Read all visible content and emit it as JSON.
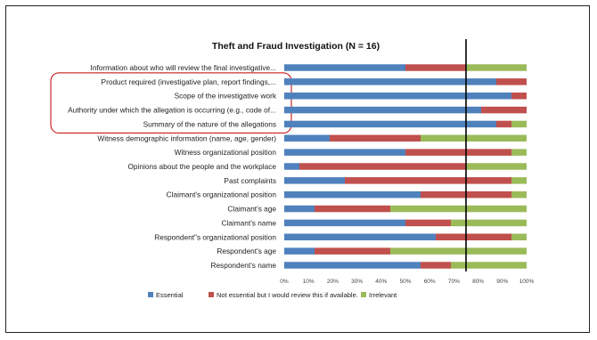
{
  "chart_data": {
    "type": "bar",
    "stacked": "percent",
    "orientation": "horizontal",
    "title": "Theft and Fraud Investigation (N = 16)",
    "categories": [
      "Information about who will review the final investigative...",
      "Product required (investigative plan, report findings,...",
      "Scope of the investigative work",
      "Authority under which the allegation is occurring (e.g., code of...",
      "Summary of the nature of the allegations",
      "Witness demographic information (name, age, gender)",
      "Witness organizational position",
      "Opinions about the people and the workplace",
      "Past complaints",
      "Claimant's organizational position",
      "Claimant's age",
      "Claimant's name",
      "Respondent\"s organizational position",
      "Respondent's age",
      "Respondent's name"
    ],
    "series": [
      {
        "name": "Essential",
        "values": [
          50,
          87.5,
          93.75,
          81.25,
          87.5,
          18.75,
          50,
          6.25,
          25,
          56.25,
          12.5,
          50,
          62.5,
          12.5,
          56.25
        ]
      },
      {
        "name": "Not essential but I would review this if available.",
        "values": [
          25,
          12.5,
          6.25,
          18.75,
          6.25,
          37.5,
          43.75,
          68.75,
          68.75,
          37.5,
          31.25,
          18.75,
          31.25,
          31.25,
          12.5
        ]
      },
      {
        "name": "Irrelevant",
        "values": [
          25,
          0,
          0,
          0,
          6.25,
          43.75,
          6.25,
          25,
          6.25,
          6.25,
          56.25,
          31.25,
          6.25,
          56.25,
          31.25
        ]
      }
    ],
    "x_ticks": [
      "0%",
      "10%",
      "20%",
      "30%",
      "40%",
      "50%",
      "60%",
      "70%",
      "80%",
      "90%",
      "100%"
    ],
    "xlim": [
      0,
      100
    ],
    "reference_line": 75,
    "legend_position": "bottom",
    "colors": {
      "Essential": "#4f81bd",
      "Not essential but I would review this if available.": "#c0504d",
      "Irrelevant": "#9bbb59",
      "reference_line": "#000000",
      "highlight_box": "#c00000"
    },
    "highlight_categories": [
      1,
      2,
      3,
      4
    ]
  }
}
